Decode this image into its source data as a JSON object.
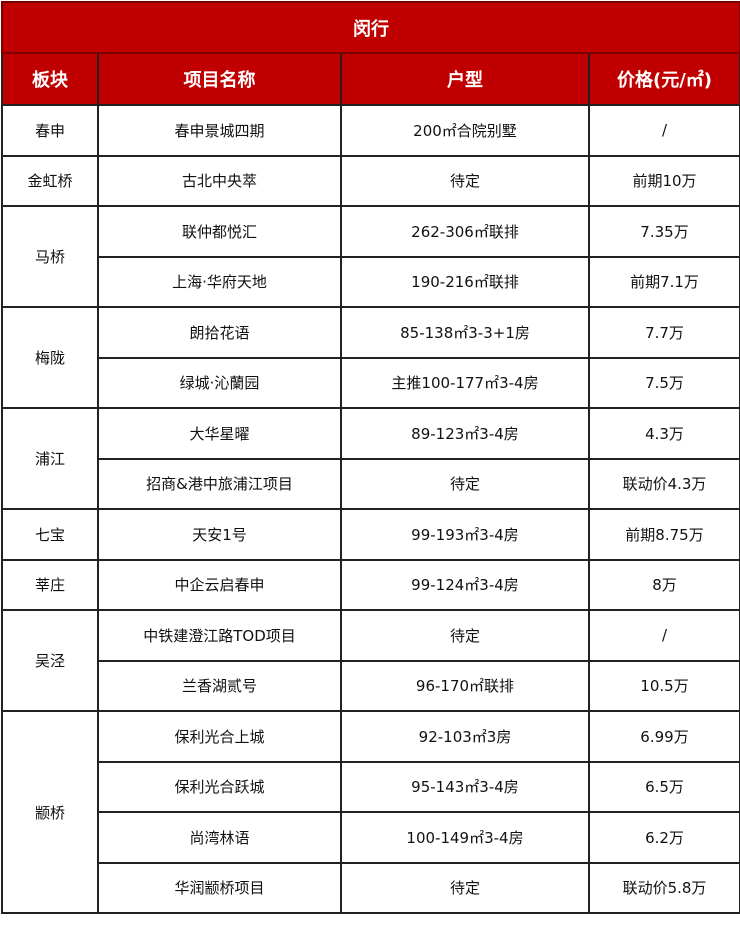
{
  "title": "闵行",
  "headers": [
    "板块",
    "项目名称",
    "户型",
    "价格(元/㎡)"
  ],
  "colors": {
    "header_bg": "#c00000",
    "header_text": "#ffffff"
  },
  "groups": [
    {
      "area": "春申",
      "items": [
        {
          "name": "春申景城四期",
          "type": "200㎡合院别墅",
          "price": "/"
        }
      ]
    },
    {
      "area": "金虹桥",
      "items": [
        {
          "name": "古北中央萃",
          "type": "待定",
          "price": "前期10万"
        }
      ]
    },
    {
      "area": "马桥",
      "items": [
        {
          "name": "联仲都悦汇",
          "type": "262-306㎡联排",
          "price": "7.35万"
        },
        {
          "name": "上海·华府天地",
          "type": "190-216㎡联排",
          "price": "前期7.1万"
        }
      ]
    },
    {
      "area": "梅陇",
      "items": [
        {
          "name": "朗拾花语",
          "type": "85-138㎡3-3+1房",
          "price": "7.7万"
        },
        {
          "name": "绿城·沁蘭园",
          "type": "主推100-177㎡3-4房",
          "price": "7.5万"
        }
      ]
    },
    {
      "area": "浦江",
      "items": [
        {
          "name": "大华星曜",
          "type": "89-123㎡3-4房",
          "price": "4.3万"
        },
        {
          "name": "招商&港中旅浦江项目",
          "type": "待定",
          "price": "联动价4.3万"
        }
      ]
    },
    {
      "area": "七宝",
      "items": [
        {
          "name": "天安1号",
          "type": "99-193㎡3-4房",
          "price": "前期8.75万"
        }
      ]
    },
    {
      "area": "莘庄",
      "items": [
        {
          "name": "中企云启春申",
          "type": "99-124㎡3-4房",
          "price": "8万"
        }
      ]
    },
    {
      "area": "吴泾",
      "items": [
        {
          "name": "中铁建澄江路TOD项目",
          "type": "待定",
          "price": "/"
        },
        {
          "name": "兰香湖贰号",
          "type": "96-170㎡联排",
          "price": "10.5万"
        }
      ]
    },
    {
      "area": "颛桥",
      "items": [
        {
          "name": "保利光合上城",
          "type": "92-103㎡3房",
          "price": "6.99万"
        },
        {
          "name": "保利光合跃城",
          "type": "95-143㎡3-4房",
          "price": "6.5万"
        },
        {
          "name": "尚湾林语",
          "type": "100-149㎡3-4房",
          "price": "6.2万"
        },
        {
          "name": "华润颛桥项目",
          "type": "待定",
          "price": "联动价5.8万"
        }
      ]
    }
  ]
}
